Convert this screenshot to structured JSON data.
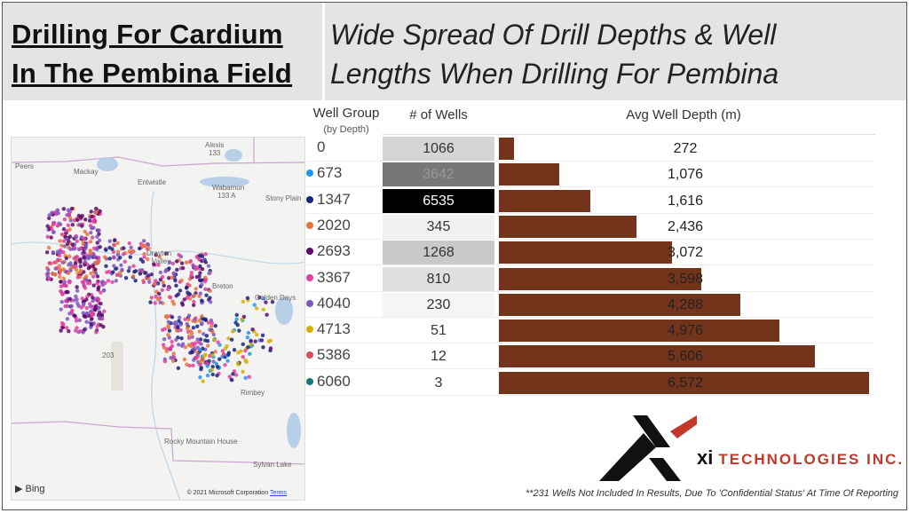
{
  "header": {
    "title_line1": "Drilling For Cardium ",
    "title_line2": "In The Pembina Field",
    "subtitle_line1": "Wide Spread Of Drill Depths & Well",
    "subtitle_line2": "Lengths When Drilling For Pembina"
  },
  "map": {
    "labels": [
      "Peers",
      "Mackay",
      "Entwistle",
      "Alexis",
      "133",
      "Wabamun",
      "133 A",
      "Stony Plain",
      "Drayton",
      "Valley",
      "Breton",
      "Golden Days",
      "Rimbey",
      "203",
      "Rocky Mountain House",
      "Sylvan Lake"
    ],
    "provider": "Bing",
    "copyright": "© 2021 Microsoft Corporation",
    "terms": "Terms"
  },
  "table": {
    "col_group": "Well Group",
    "col_group_sub": "(by Depth)",
    "col_wells": "# of Wells",
    "col_depth": "Avg Well Depth (m)",
    "rows": [
      {
        "group": "0",
        "color": "",
        "wells": "1066",
        "well_bg": "#d4d4d4",
        "well_fg": "#333",
        "depth": 272,
        "depth_label": "272"
      },
      {
        "group": "673",
        "color": "#2196f3",
        "wells": "3642",
        "well_bg": "#777777",
        "well_fg": "#999",
        "depth": 1076,
        "depth_label": "1,076"
      },
      {
        "group": "1347",
        "color": "#1a237e",
        "wells": "6535",
        "well_bg": "#000000",
        "well_fg": "#fff",
        "depth": 1616,
        "depth_label": "1,616"
      },
      {
        "group": "2020",
        "color": "#e8743b",
        "wells": "345",
        "well_bg": "#f0f0f0",
        "well_fg": "#333",
        "depth": 2436,
        "depth_label": "2,436"
      },
      {
        "group": "2693",
        "color": "#5a0a6e",
        "wells": "1268",
        "well_bg": "#c9c9c9",
        "well_fg": "#333",
        "depth": 3072,
        "depth_label": "3,072"
      },
      {
        "group": "3367",
        "color": "#e040a0",
        "wells": "810",
        "well_bg": "#e0e0e0",
        "well_fg": "#333",
        "depth": 3598,
        "depth_label": "3,598"
      },
      {
        "group": "4040",
        "color": "#7e57c2",
        "wells": "230",
        "well_bg": "#f5f5f5",
        "well_fg": "#333",
        "depth": 4288,
        "depth_label": "4,288"
      },
      {
        "group": "4713",
        "color": "#d4b000",
        "wells": "51",
        "well_bg": "#ffffff",
        "well_fg": "#333",
        "depth": 4976,
        "depth_label": "4,976"
      },
      {
        "group": "5386",
        "color": "#e04a5a",
        "wells": "12",
        "well_bg": "#ffffff",
        "well_fg": "#333",
        "depth": 5606,
        "depth_label": "5,606"
      },
      {
        "group": "6060",
        "color": "#127a7a",
        "wells": "3",
        "well_bg": "#ffffff",
        "well_fg": "#333",
        "depth": 6572,
        "depth_label": "6,572"
      }
    ],
    "bar_color": "#74331b"
  },
  "logo": {
    "mark": "xi",
    "name": "TECHNOLOGIES INC."
  },
  "footnote": "**231 Wells Not Included In Results, Due To 'Confidential Status' At Time Of Reporting"
}
